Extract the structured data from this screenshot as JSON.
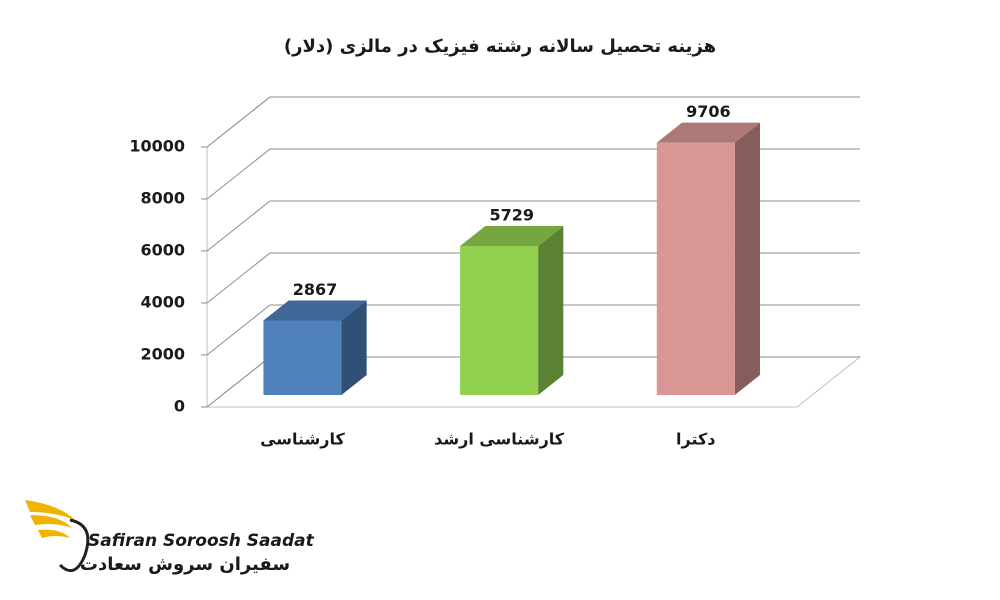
{
  "chart_data": {
    "type": "bar3d",
    "title": "هزینه تحصیل سالانه رشته فیزیک در مالزی (دلار)",
    "categories": [
      "کارشناسی",
      "کارشناسی ارشد",
      "دکترا"
    ],
    "values": [
      2867,
      5729,
      9706
    ],
    "colors": [
      "#4f81bd",
      "#92d050",
      "#d99694"
    ],
    "ylim": [
      0,
      10000
    ],
    "yticks": [
      0,
      2000,
      4000,
      6000,
      8000,
      10000
    ],
    "grid": true
  },
  "brand": {
    "name_en": "Safiran Soroosh Saadat",
    "name_fa": "سفیران سروش سعادت"
  }
}
